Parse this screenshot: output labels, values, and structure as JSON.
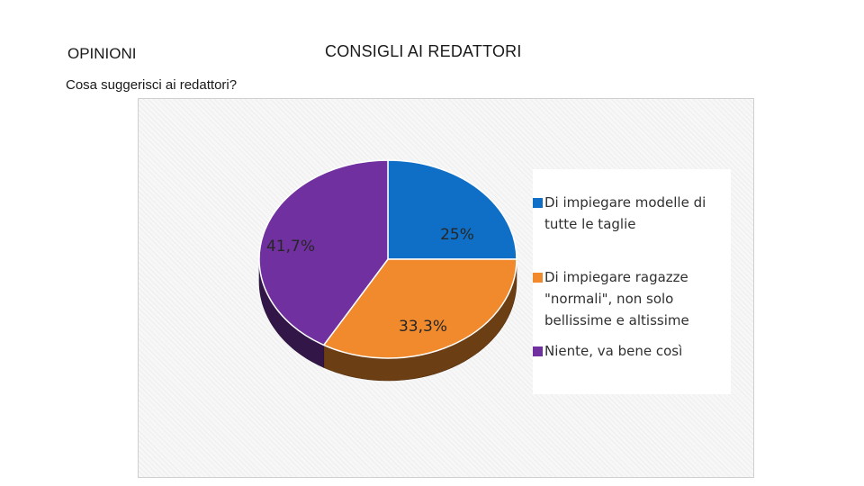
{
  "header": {
    "section_label": "OPINIONI",
    "title": "CONSIGLI AI REDATTORI",
    "question": "Cosa suggerisci ai redattori?"
  },
  "chart_data": {
    "type": "pie",
    "categories": [
      "Di impiegare modelle di tutte le taglie",
      "Di impiegare ragazze \"normali\", non solo bellissime e altissime",
      "Niente, va bene così"
    ],
    "values": [
      25,
      33.3,
      41.7
    ],
    "data_labels": [
      "25%",
      "33,3%",
      "41,7%"
    ],
    "colors": [
      "#0F6FC6",
      "#F08A2C",
      "#7030A0"
    ],
    "style": "3d",
    "legend_position": "right"
  }
}
